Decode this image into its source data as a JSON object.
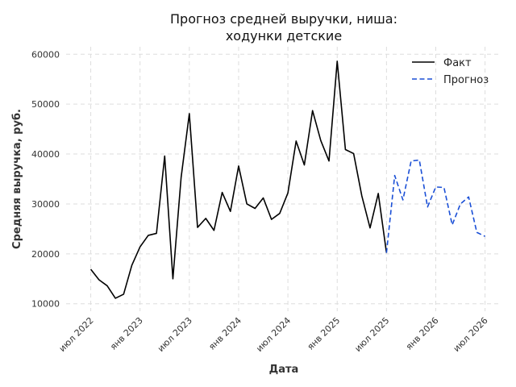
{
  "chart_data": {
    "type": "line",
    "title_lines": [
      "Прогноз средней выручки, ниша:",
      "ходунки детские"
    ],
    "xlabel": "Дата",
    "ylabel": "Средняя выручка, руб.",
    "xlim": [
      "2022-04",
      "2026-09"
    ],
    "ylim": [
      8500,
      61500
    ],
    "grid": true,
    "legend_position": "top-right",
    "x_ticks": [
      {
        "date": "2022-07",
        "label": "июл 2022"
      },
      {
        "date": "2023-01",
        "label": "янв 2023"
      },
      {
        "date": "2023-07",
        "label": "июл 2023"
      },
      {
        "date": "2024-01",
        "label": "янв 2024"
      },
      {
        "date": "2024-07",
        "label": "июл 2024"
      },
      {
        "date": "2025-01",
        "label": "янв 2025"
      },
      {
        "date": "2025-07",
        "label": "июл 2025"
      },
      {
        "date": "2026-01",
        "label": "янв 2026"
      },
      {
        "date": "2026-07",
        "label": "июл 2026"
      }
    ],
    "y_ticks": [
      {
        "value": 10000,
        "label": "10000"
      },
      {
        "value": 20000,
        "label": "20000"
      },
      {
        "value": 30000,
        "label": "30000"
      },
      {
        "value": 40000,
        "label": "40000"
      },
      {
        "value": 50000,
        "label": "50000"
      },
      {
        "value": 60000,
        "label": "60000"
      }
    ],
    "series": [
      {
        "name": "Факт",
        "color": "#000000",
        "dashed": false,
        "x": [
          "2022-07",
          "2022-08",
          "2022-09",
          "2022-10",
          "2022-11",
          "2022-12",
          "2023-01",
          "2023-02",
          "2023-03",
          "2023-04",
          "2023-05",
          "2023-06",
          "2023-07",
          "2023-08",
          "2023-09",
          "2023-10",
          "2023-11",
          "2023-12",
          "2024-01",
          "2024-02",
          "2024-03",
          "2024-04",
          "2024-05",
          "2024-06",
          "2024-07",
          "2024-08",
          "2024-09",
          "2024-10",
          "2024-11",
          "2024-12",
          "2025-01",
          "2025-02",
          "2025-03",
          "2025-04",
          "2025-05",
          "2025-06",
          "2025-07"
        ],
        "values": [
          16900,
          14800,
          13600,
          11100,
          11900,
          17700,
          21400,
          23700,
          24100,
          39600,
          15000,
          35300,
          48100,
          25300,
          27100,
          24700,
          32300,
          28500,
          37600,
          30000,
          29100,
          31200,
          26900,
          28100,
          32200,
          42600,
          37800,
          48700,
          42700,
          38600,
          58600,
          40900,
          40100,
          31600,
          25200,
          32100,
          20200
        ]
      },
      {
        "name": "Прогноз",
        "color": "#1a4fd6",
        "dashed": true,
        "x": [
          "2025-07",
          "2025-08",
          "2025-09",
          "2025-10",
          "2025-11",
          "2025-12",
          "2026-01",
          "2026-02",
          "2026-03",
          "2026-04",
          "2026-05",
          "2026-06",
          "2026-07"
        ],
        "values": [
          20200,
          35700,
          30800,
          38600,
          38800,
          29400,
          33400,
          33300,
          25800,
          30000,
          31400,
          24300,
          23500
        ]
      }
    ]
  }
}
